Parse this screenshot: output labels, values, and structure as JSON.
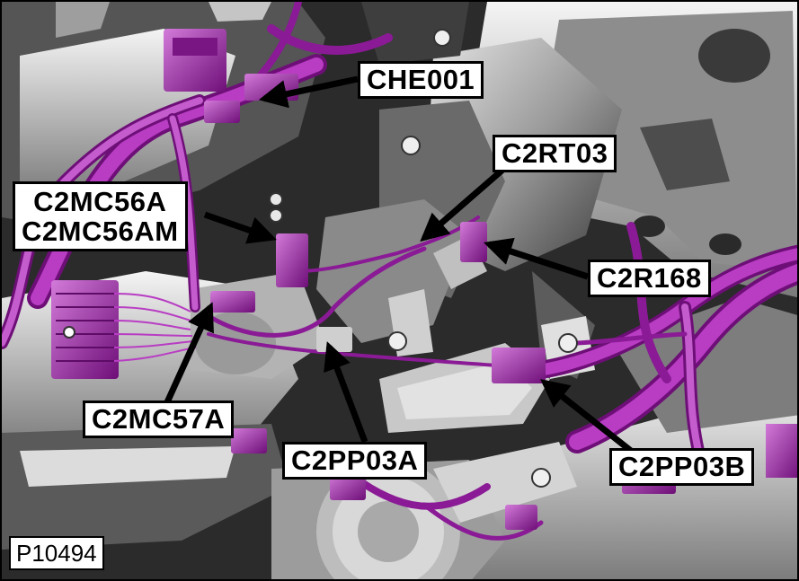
{
  "colors": {
    "harness": "#9b1fa8",
    "harness_dark": "#5e0c68",
    "harness_light": "#d27ad9",
    "metal_dark": "#2e2e2e",
    "metal_mid": "#6f6f6f",
    "metal_light": "#c9c9c9",
    "callout_bg": "#ffffff",
    "callout_border": "#000000"
  },
  "callouts": {
    "che001": "CHE001",
    "c2rt03": "C2RT03",
    "c2mc56a": "C2MC56A",
    "c2mc56am": "C2MC56AM",
    "c2r168": "C2R168",
    "c2mc57a": "C2MC57A",
    "c2pp03a": "C2PP03A",
    "c2pp03b": "C2PP03B"
  },
  "figure_id": "P10494"
}
